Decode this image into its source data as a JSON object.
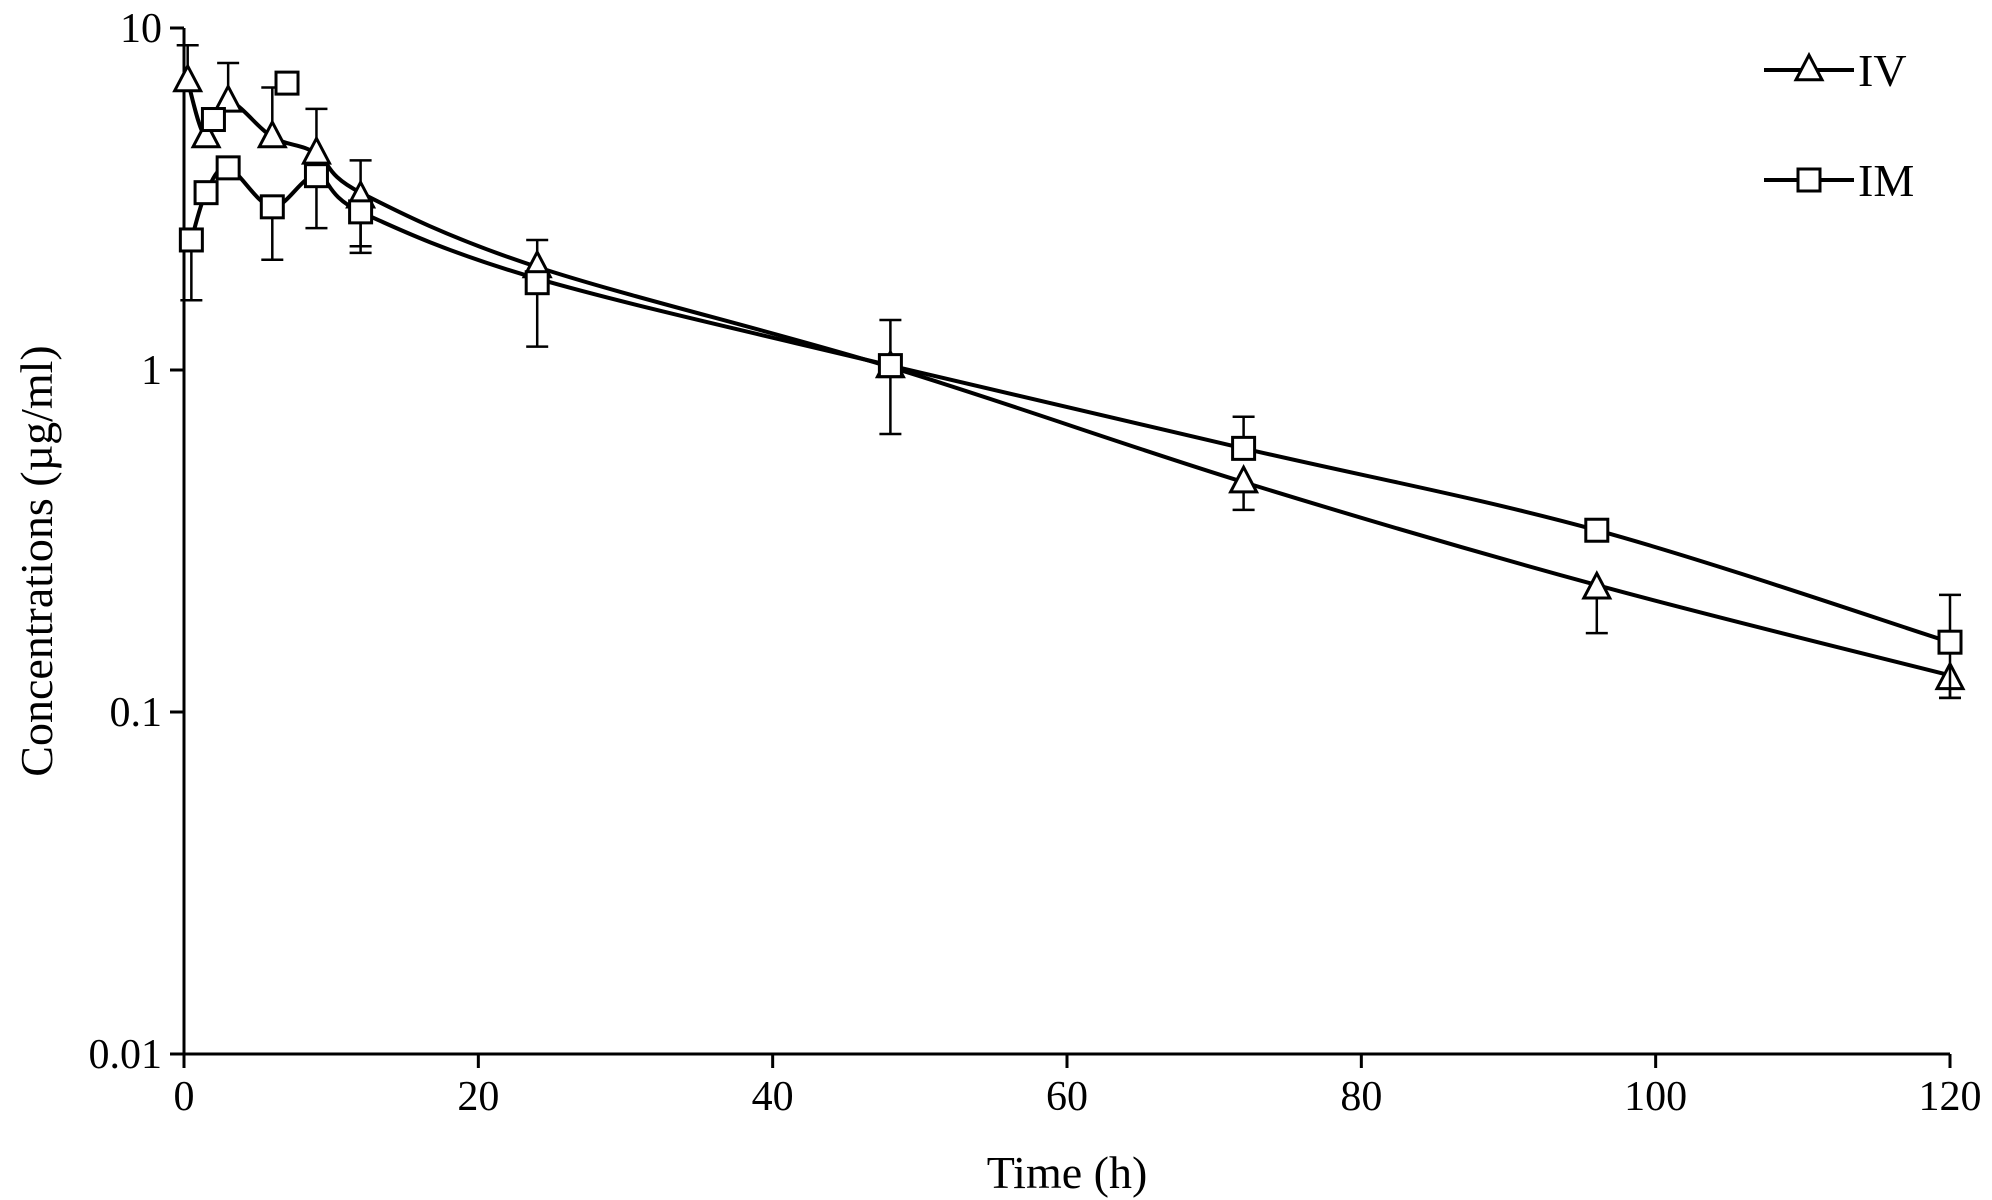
{
  "chart_data": {
    "type": "line",
    "xlabel": "Time (h)",
    "ylabel": "Concentrations (µg/ml)",
    "xlim": [
      0,
      120
    ],
    "ylim": [
      0.01,
      10
    ],
    "yscale": "log",
    "xticks": [
      0,
      20,
      40,
      60,
      80,
      100,
      120
    ],
    "xtick_labels": [
      "0",
      "20",
      "40",
      "60",
      "80",
      "100",
      "120"
    ],
    "yticks": [
      0.01,
      0.1,
      1,
      10
    ],
    "ytick_labels": [
      "0.01",
      "0.1",
      "1",
      "10"
    ],
    "grid": false,
    "legend_position": "top-right",
    "series": [
      {
        "name": "IV",
        "marker": "triangle",
        "color": "#000000",
        "x": [
          0.25,
          1.5,
          3,
          6,
          9,
          12,
          24,
          48,
          72,
          96,
          120
        ],
        "y": [
          7.0,
          4.8,
          6.1,
          4.8,
          4.3,
          3.2,
          2.0,
          1.02,
          0.47,
          0.23,
          0.125
        ],
        "err_low": [
          null,
          null,
          null,
          null,
          2.6,
          2.3,
          null,
          0.65,
          0.39,
          0.17,
          0.11
        ],
        "err_high": [
          8.9,
          null,
          7.9,
          6.7,
          5.8,
          4.1,
          2.4,
          1.4,
          null,
          null,
          null
        ],
        "curve": [
          [
            0.25,
            7.0
          ],
          [
            1.5,
            4.8
          ],
          [
            3,
            6.1
          ],
          [
            6,
            4.8
          ],
          [
            9,
            4.3
          ],
          [
            12,
            3.3
          ],
          [
            24,
            2.0
          ],
          [
            48,
            1.02
          ],
          [
            72,
            0.47
          ],
          [
            96,
            0.235
          ],
          [
            120,
            0.128
          ]
        ]
      },
      {
        "name": "IM",
        "marker": "square",
        "color": "#000000",
        "x": [
          0.5,
          1.5,
          2,
          3,
          6,
          7,
          9,
          12,
          24,
          48,
          72,
          96,
          120
        ],
        "y": [
          2.4,
          3.3,
          5.4,
          3.9,
          3.0,
          6.9,
          3.7,
          2.9,
          1.8,
          1.03,
          0.59,
          0.34,
          0.16
        ],
        "err_low": [
          1.6,
          null,
          null,
          null,
          2.1,
          null,
          null,
          2.2,
          1.17,
          null,
          null,
          null,
          0.11
        ],
        "err_high": [
          null,
          null,
          null,
          null,
          null,
          null,
          null,
          null,
          null,
          null,
          0.73,
          null,
          0.22
        ],
        "curve": [
          [
            0.5,
            2.4
          ],
          [
            1.5,
            3.3
          ],
          [
            3,
            3.9
          ],
          [
            6,
            3.0
          ],
          [
            9,
            3.7
          ],
          [
            12,
            2.9
          ],
          [
            24,
            1.85
          ],
          [
            48,
            1.03
          ],
          [
            72,
            0.59
          ],
          [
            96,
            0.34
          ],
          [
            120,
            0.16
          ]
        ]
      }
    ]
  }
}
